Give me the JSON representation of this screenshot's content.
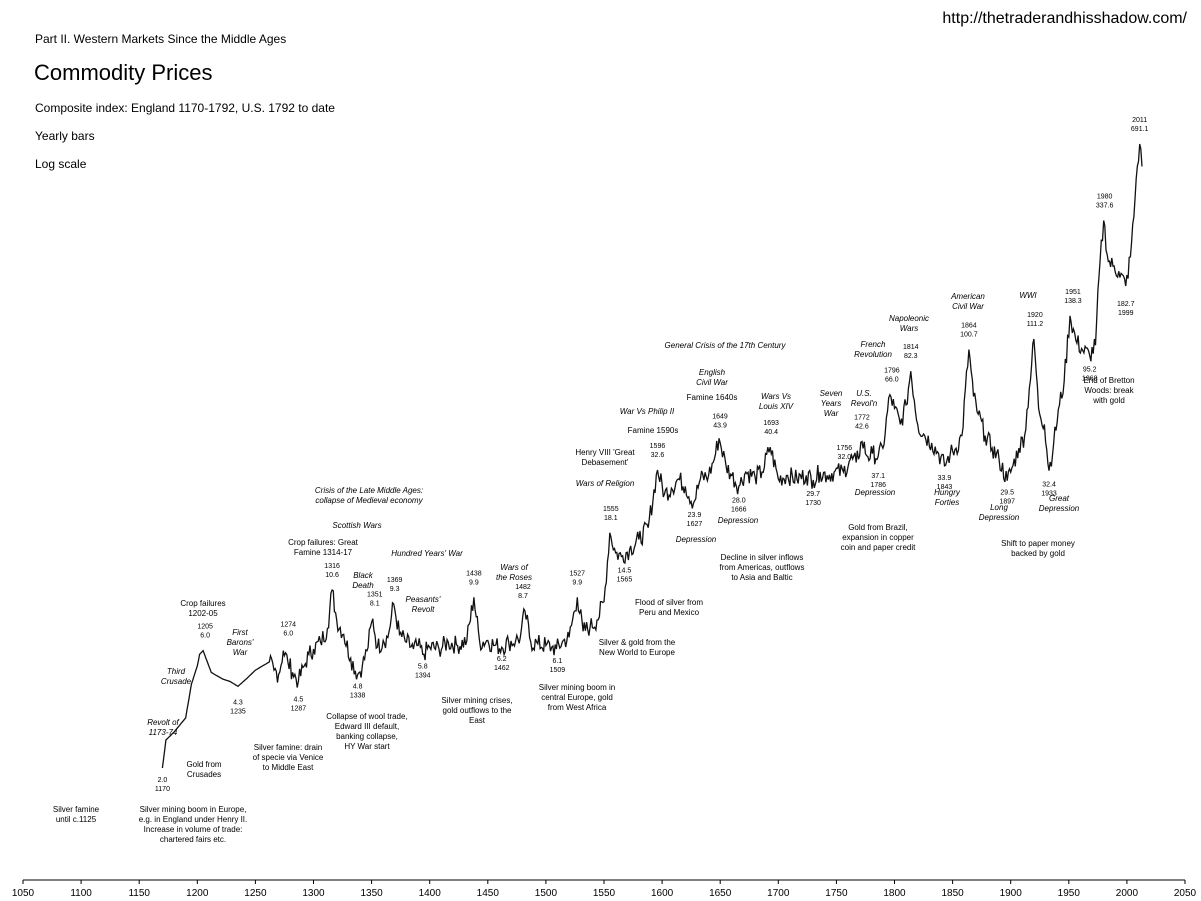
{
  "header": {
    "url": "http://thetraderandhisshadow.com/",
    "part": "Part II. Western Markets Since the Middle Ages",
    "title": "Commodity Prices",
    "subtitle": "Composite index: England 1170-1792, U.S. 1792 to date",
    "bars_label": "Yearly bars",
    "scale_label": "Log scale"
  },
  "chart_data": {
    "type": "line",
    "title": "Commodity Prices",
    "subtitle": "Composite index: England 1170-1792, U.S. 1792 to date",
    "y_scale": "log",
    "xlim": [
      1050,
      2050
    ],
    "x_ticks": [
      1050,
      1100,
      1150,
      1200,
      1250,
      1300,
      1350,
      1400,
      1450,
      1500,
      1550,
      1600,
      1650,
      1700,
      1750,
      1800,
      1850,
      1900,
      1950,
      2000,
      2050
    ],
    "grid": false,
    "series": [
      {
        "x": [
          1170,
          1173,
          1180,
          1190,
          1195,
          1200,
          1202,
          1205,
          1212,
          1215,
          1222,
          1228,
          1235,
          1242,
          1250,
          1256,
          1262,
          1266,
          1270,
          1274,
          1278,
          1282,
          1287,
          1292,
          1296,
          1300,
          1306,
          1312,
          1316,
          1320,
          1326,
          1332,
          1338,
          1342,
          1346,
          1351,
          1355,
          1360,
          1364,
          1369,
          1374,
          1380,
          1386,
          1390,
          1394,
          1400,
          1408,
          1416,
          1424,
          1432,
          1438,
          1443,
          1450,
          1456,
          1462,
          1468,
          1474,
          1478,
          1482,
          1487,
          1493,
          1500,
          1505,
          1509,
          1514,
          1520,
          1527,
          1532,
          1538,
          1544,
          1550,
          1555,
          1560,
          1565,
          1572,
          1580,
          1588,
          1596,
          1602,
          1608,
          1614,
          1620,
          1627,
          1633,
          1640,
          1644,
          1649,
          1655,
          1660,
          1666,
          1672,
          1680,
          1686,
          1693,
          1700,
          1708,
          1716,
          1724,
          1730,
          1736,
          1742,
          1748,
          1756,
          1762,
          1767,
          1772,
          1777,
          1781,
          1786,
          1790,
          1796,
          1800,
          1805,
          1810,
          1814,
          1820,
          1826,
          1832,
          1838,
          1843,
          1848,
          1853,
          1858,
          1864,
          1868,
          1872,
          1878,
          1884,
          1890,
          1897,
          1902,
          1907,
          1912,
          1916,
          1920,
          1924,
          1929,
          1933,
          1937,
          1942,
          1946,
          1951,
          1956,
          1962,
          1968,
          1973,
          1976,
          1980,
          1984,
          1988,
          1993,
          1999,
          2003,
          2006,
          2008,
          2011,
          2013
        ],
        "y": [
          2.0,
          2.6,
          2.8,
          3.2,
          4.4,
          5.2,
          5.8,
          6.0,
          4.9,
          4.8,
          4.6,
          4.5,
          4.3,
          4.6,
          5.0,
          5.2,
          5.4,
          5.0,
          4.8,
          6.0,
          5.4,
          4.9,
          4.5,
          5.2,
          5.8,
          6.1,
          6.5,
          7.4,
          10.6,
          8.0,
          7.0,
          5.6,
          4.8,
          5.2,
          6.0,
          8.1,
          6.2,
          6.6,
          6.8,
          9.3,
          7.0,
          6.5,
          6.1,
          6.3,
          5.8,
          6.2,
          6.1,
          6.5,
          6.3,
          6.6,
          9.9,
          6.5,
          6.6,
          6.3,
          6.2,
          6.5,
          6.6,
          6.8,
          8.7,
          6.5,
          6.4,
          6.3,
          6.2,
          6.1,
          6.5,
          6.8,
          9.9,
          7.2,
          7.5,
          8.0,
          9.5,
          18.1,
          15.0,
          14.5,
          15.5,
          17.0,
          19.0,
          32.6,
          26.0,
          27.5,
          30.0,
          28.0,
          23.9,
          30.0,
          31.0,
          35.0,
          43.9,
          34.0,
          31.0,
          28.0,
          32.0,
          30.5,
          32.0,
          40.4,
          30.0,
          31.0,
          30.0,
          31.0,
          29.7,
          32.0,
          31.0,
          32.0,
          32.0,
          36.0,
          35.0,
          42.6,
          37.0,
          38.0,
          37.1,
          40.0,
          66.0,
          58.0,
          50.0,
          60.0,
          82.3,
          50.0,
          45.0,
          42.0,
          38.0,
          33.9,
          38.0,
          40.0,
          45.0,
          100.7,
          65.0,
          55.0,
          45.0,
          40.0,
          36.0,
          29.5,
          34.0,
          40.0,
          45.0,
          70.0,
          111.2,
          58.0,
          50.0,
          32.4,
          42.0,
          60.0,
          75.0,
          138.3,
          110.0,
          100.0,
          95.2,
          105.0,
          200.0,
          337.6,
          230.0,
          220.0,
          210.0,
          182.7,
          240.0,
          350.0,
          500.0,
          691.1,
          560.0
        ]
      }
    ],
    "point_labels": [
      {
        "year": 1170,
        "text": "2.0\n1170"
      },
      {
        "year": 1205,
        "text": "1205\n6.0"
      },
      {
        "year": 1235,
        "text": "4.3\n1235"
      },
      {
        "year": 1274,
        "text": "1274\n6.0"
      },
      {
        "year": 1287,
        "text": "4.5\n1287"
      },
      {
        "year": 1316,
        "text": "1316\n10.6"
      },
      {
        "year": 1338,
        "text": "4.8\n1338"
      },
      {
        "year": 1351,
        "text": "1351\n8.1"
      },
      {
        "year": 1369,
        "text": "1369\n9.3"
      },
      {
        "year": 1394,
        "text": "5.8\n1394"
      },
      {
        "year": 1438,
        "text": "1438\n9.9"
      },
      {
        "year": 1462,
        "text": "6.2\n1462"
      },
      {
        "year": 1482,
        "text": "1482\n8.7"
      },
      {
        "year": 1509,
        "text": "6.1\n1509"
      },
      {
        "year": 1527,
        "text": "1527\n9.9"
      },
      {
        "year": 1555,
        "text": "1555\n18.1"
      },
      {
        "year": 1565,
        "text": "14.5\n1565"
      },
      {
        "year": 1596,
        "text": "1596\n32.6"
      },
      {
        "year": 1627,
        "text": "23.9\n1627"
      },
      {
        "year": 1649,
        "text": "1649\n43.9"
      },
      {
        "year": 1666,
        "text": "28.0\n1666"
      },
      {
        "year": 1693,
        "text": "1693\n40.4"
      },
      {
        "year": 1730,
        "text": "29.7\n1730"
      },
      {
        "year": 1756,
        "text": "1756\n32.0"
      },
      {
        "year": 1772,
        "text": "1772\n42.6"
      },
      {
        "year": 1786,
        "text": "37.1\n1786"
      },
      {
        "year": 1796,
        "text": "1796\n66.0"
      },
      {
        "year": 1814,
        "text": "1814\n82.3"
      },
      {
        "year": 1843,
        "text": "33.9\n1843"
      },
      {
        "year": 1864,
        "text": "1864\n100.7"
      },
      {
        "year": 1897,
        "text": "29.5\n1897"
      },
      {
        "year": 1920,
        "text": "1920\n111.2"
      },
      {
        "year": 1933,
        "text": "32.4\n1933"
      },
      {
        "year": 1951,
        "text": "1951\n138.3"
      },
      {
        "year": 1968,
        "text": "95.2\n1968"
      },
      {
        "year": 1980,
        "text": "1980\n337.6"
      },
      {
        "year": 1999,
        "text": "182.7\n1999"
      },
      {
        "year": 2011,
        "text": "2011\n691.1"
      }
    ],
    "annotations": [
      {
        "text": "Silver famine\nuntil c.1125",
        "italic": false
      },
      {
        "text": "Silver mining boom in Europe,\ne.g. in England under Henry II.\nIncrease in volume of trade:\nchartered fairs etc.",
        "italic": false
      },
      {
        "text": "Revolt of\n1173-74",
        "italic": true
      },
      {
        "text": "Third\nCrusade",
        "italic": true
      },
      {
        "text": "Gold from\nCrusades",
        "italic": false
      },
      {
        "text": "Crop failures\n1202-05",
        "italic": false
      },
      {
        "text": "First\nBarons'\nWar",
        "italic": true
      },
      {
        "text": "Silver famine: drain\nof specie via Venice\nto Middle East",
        "italic": false
      },
      {
        "text": "Crop failures: Great\nFamine 1314-17",
        "italic": false
      },
      {
        "text": "Scottish Wars",
        "italic": true
      },
      {
        "text": "Crisis of the Late Middle Ages:\ncollapse of Medieval economy",
        "italic": true
      },
      {
        "text": "Black\nDeath",
        "italic": true
      },
      {
        "text": "Hundred Years' War",
        "italic": true
      },
      {
        "text": "Peasants'\nRevolt",
        "italic": true
      },
      {
        "text": "Collapse of wool trade,\nEdward III default,\nbanking collapse,\nHY War start",
        "italic": false
      },
      {
        "text": "Wars of\nthe Roses",
        "italic": true
      },
      {
        "text": "Silver mining crises,\ngold outflows to the\nEast",
        "italic": false
      },
      {
        "text": "Silver mining boom in\ncentral Europe, gold\nfrom West Africa",
        "italic": false
      },
      {
        "text": "Silver & gold from the\nNew World to Europe",
        "italic": false
      },
      {
        "text": "Flood of silver from\nPeru and Mexico",
        "italic": false
      },
      {
        "text": "Henry VIII 'Great\nDebasement'",
        "italic": false
      },
      {
        "text": "Wars of Religion",
        "italic": true
      },
      {
        "text": "War Vs Philip II",
        "italic": true
      },
      {
        "text": "Famine 1590s",
        "italic": false
      },
      {
        "text": "General Crisis of the 17th Century",
        "italic": true
      },
      {
        "text": "English\nCivil War",
        "italic": true
      },
      {
        "text": "Famine 1640s",
        "italic": false
      },
      {
        "text": "Depression",
        "italic": true
      },
      {
        "text": "Depression",
        "italic": true
      },
      {
        "text": "Decline in silver inflows\nfrom Americas, outflows\nto Asia and Baltic",
        "italic": false
      },
      {
        "text": "Wars Vs\nLouis XIV",
        "italic": true
      },
      {
        "text": "Seven\nYears\nWar",
        "italic": true
      },
      {
        "text": "U.S.\nRevol'n",
        "italic": true
      },
      {
        "text": "French\nRevolution",
        "italic": true
      },
      {
        "text": "Napoleonic\nWars",
        "italic": true
      },
      {
        "text": "Depression",
        "italic": true
      },
      {
        "text": "Gold from Brazil,\nexpansion in copper\ncoin and paper credit",
        "italic": false
      },
      {
        "text": "Hungry\nForties",
        "italic": true
      },
      {
        "text": "American\nCivil War",
        "italic": true
      },
      {
        "text": "Long\nDepression",
        "italic": true
      },
      {
        "text": "WWI",
        "italic": true
      },
      {
        "text": "Great\nDepression",
        "italic": true
      },
      {
        "text": "Shift to paper money\nbacked by gold",
        "italic": false
      },
      {
        "text": "End of Bretton\nWoods: break\nwith gold",
        "italic": false
      }
    ]
  }
}
